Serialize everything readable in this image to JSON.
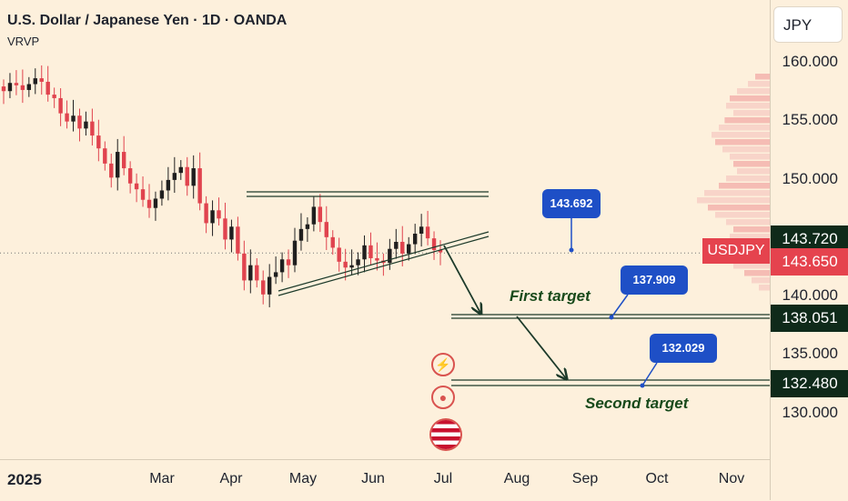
{
  "header": {
    "title": "U.S. Dollar / Japanese Yen · 1D · OANDA",
    "indicator": "VRVP"
  },
  "currency_button": "JPY",
  "symbol_tag": "USDJPY",
  "colors": {
    "up": "#1f1f1f",
    "down": "#e0434e",
    "accent": "#1e4fc6",
    "label_dark": "#0f2a1a",
    "label_red": "#e5434e"
  },
  "chart_data": {
    "type": "candlestick",
    "x_ticks": [
      "2025",
      "Mar",
      "Apr",
      "May",
      "Jun",
      "Jul",
      "Aug",
      "Sep",
      "Oct",
      "Nov"
    ],
    "y_ticks": [
      "160.000",
      "155.000",
      "150.000",
      "140.000",
      "135.000",
      "130.000"
    ],
    "ylim": [
      126.0,
      165.3
    ],
    "last_price": "143.650",
    "price_labels": [
      {
        "text": "143.720",
        "value": 143.72,
        "kind": "dark"
      },
      {
        "text": "143.650",
        "value": 143.65,
        "kind": "red"
      },
      {
        "text": "138.051",
        "value": 138.051,
        "kind": "dark"
      },
      {
        "text": "132.480",
        "value": 132.48,
        "kind": "dark"
      }
    ],
    "callouts": [
      {
        "text": "143.692",
        "value": 143.692
      },
      {
        "text": "137.909",
        "value": 137.909
      },
      {
        "text": "132.029",
        "value": 132.029
      }
    ],
    "annotations": {
      "first_target": "First target",
      "second_target": "Second target"
    },
    "close_path": [
      157.5,
      158.2,
      158.0,
      157.6,
      158.1,
      158.6,
      158.3,
      157.2,
      156.9,
      155.6,
      154.9,
      155.4,
      154.3,
      154.9,
      153.7,
      152.6,
      151.3,
      150.1,
      152.3,
      150.9,
      149.6,
      149.1,
      148.2,
      147.5,
      148.3,
      149.0,
      149.9,
      150.5,
      151.0,
      149.4,
      150.9,
      147.9,
      146.2,
      147.3,
      146.6,
      144.8,
      145.9,
      143.6,
      141.3,
      142.6,
      141.3,
      140.1,
      141.6,
      142.0,
      143.1,
      142.6,
      144.7,
      145.7,
      146.1,
      147.6,
      146.3,
      145.0,
      144.1,
      142.9,
      142.4,
      142.6,
      143.1,
      144.3,
      143.2,
      143.0,
      142.8,
      144.0,
      144.6,
      143.6,
      144.4,
      145.3,
      145.9,
      144.9,
      143.9,
      143.7
    ],
    "volume_profile": [
      0.2,
      0.3,
      0.45,
      0.55,
      0.6,
      0.5,
      0.62,
      0.7,
      0.8,
      0.75,
      0.65,
      0.55,
      0.5,
      0.45,
      0.6,
      0.7,
      0.9,
      1.0,
      0.85,
      0.75,
      0.6,
      0.5,
      0.55,
      0.65,
      0.8,
      0.7,
      0.5,
      0.35,
      0.25,
      0.15
    ]
  }
}
